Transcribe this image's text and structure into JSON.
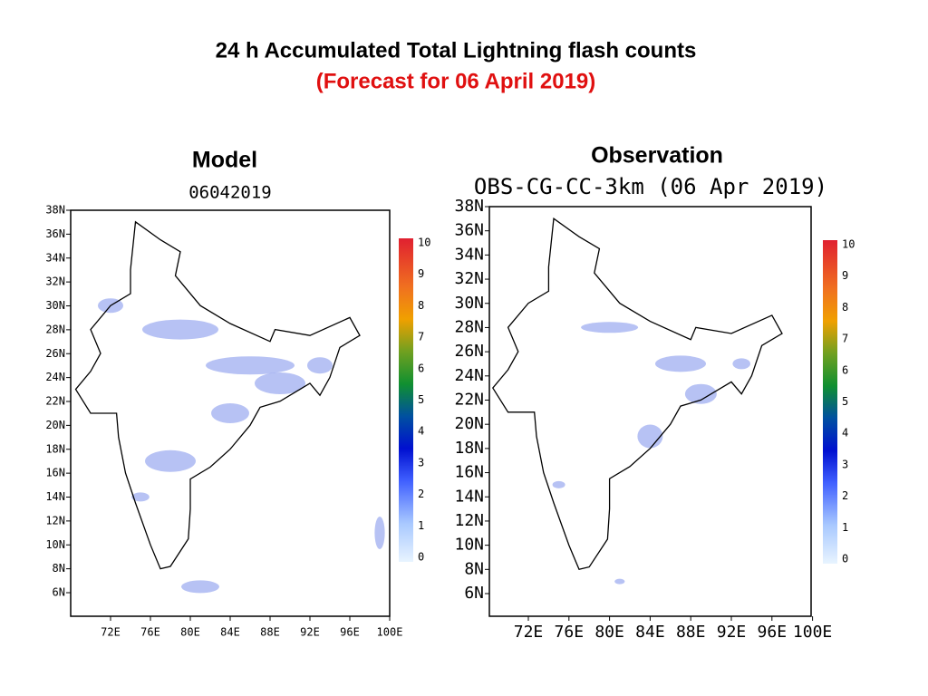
{
  "title": "24 h Accumulated Total Lightning flash counts",
  "subtitle": "(Forecast for 06 April 2019)",
  "panels": [
    {
      "label": "Model",
      "map_title": "06042019",
      "lat_labels": [
        "38N",
        "36N",
        "34N",
        "32N",
        "30N",
        "28N",
        "26N",
        "24N",
        "22N",
        "20N",
        "18N",
        "16N",
        "14N",
        "12N",
        "10N",
        "8N",
        "6N"
      ],
      "lon_labels": [
        "72E",
        "76E",
        "80E",
        "84E",
        "88E",
        "92E",
        "96E",
        "100E"
      ],
      "colorbar_labels": [
        "10",
        "9",
        "8",
        "7",
        "6",
        "5",
        "4",
        "3",
        "2",
        "1",
        "0"
      ]
    },
    {
      "label": "Observation",
      "map_title": "OBS-CG-CC-3km (06 Apr 2019)",
      "lat_labels": [
        "38N",
        "36N",
        "34N",
        "32N",
        "30N",
        "28N",
        "26N",
        "24N",
        "22N",
        "20N",
        "18N",
        "16N",
        "14N",
        "12N",
        "10N",
        "8N",
        "6N"
      ],
      "lon_labels": [
        "72E",
        "76E",
        "80E",
        "84E",
        "88E",
        "92E",
        "96E",
        "100E"
      ],
      "colorbar_labels": [
        "10",
        "9",
        "8",
        "7",
        "6",
        "5",
        "4",
        "3",
        "2",
        "1",
        "0"
      ]
    }
  ]
}
